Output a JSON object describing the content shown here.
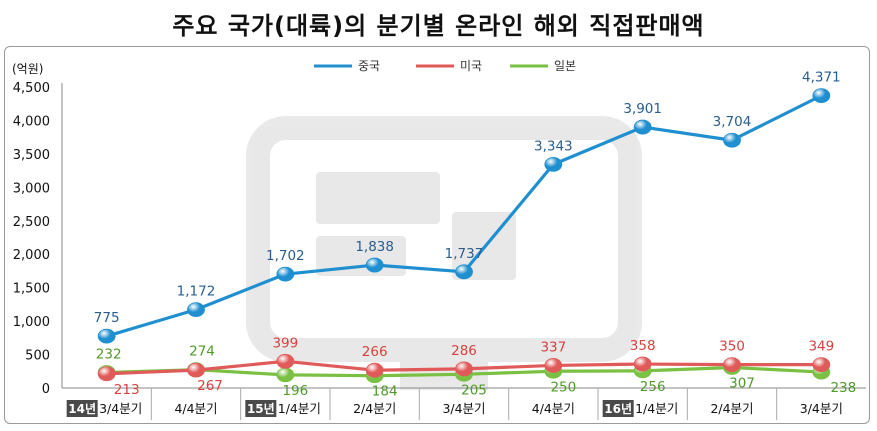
{
  "title": "주요 국가(대륙)의 분기별 온라인 해외 직접판매액",
  "chart_data": {
    "type": "line",
    "unit": "(억원)",
    "ylim": [
      0,
      4500
    ],
    "yticks": [
      "0",
      "500",
      "1,000",
      "1,500",
      "2,000",
      "2,500",
      "3,000",
      "3,500",
      "4,000",
      "4,500"
    ],
    "year_badges": [
      "14년",
      "15년",
      "16년"
    ],
    "categories": [
      "3/4분기",
      "4/4분기",
      "1/4분기",
      "2/4분기",
      "3/4분기",
      "4/4분기",
      "1/4분기",
      "2/4분기",
      "3/4분기"
    ],
    "series": [
      {
        "name": "중국",
        "color": "#1f8fd0",
        "label_color": "#2a5d8f",
        "values": [
          775,
          1172,
          1702,
          1838,
          1737,
          3343,
          3901,
          3704,
          4371
        ],
        "labels": [
          "775",
          "1,172",
          "1,702",
          "1,838",
          "1,737",
          "3,343",
          "3,901",
          "3,704",
          "4,371"
        ]
      },
      {
        "name": "미국",
        "color": "#e05a5a",
        "label_color": "#d9413f",
        "values": [
          213,
          267,
          399,
          266,
          286,
          337,
          358,
          350,
          349
        ],
        "labels": [
          "213",
          "267",
          "399",
          "266",
          "286",
          "337",
          "358",
          "350",
          "349"
        ]
      },
      {
        "name": "일본",
        "color": "#7ac043",
        "label_color": "#4e9a2a",
        "values": [
          232,
          274,
          196,
          184,
          205,
          250,
          256,
          307,
          238
        ],
        "labels": [
          "232",
          "274",
          "196",
          "184",
          "205",
          "250",
          "256",
          "307",
          "238"
        ]
      }
    ],
    "grid": false,
    "legend_position": "top-center"
  }
}
